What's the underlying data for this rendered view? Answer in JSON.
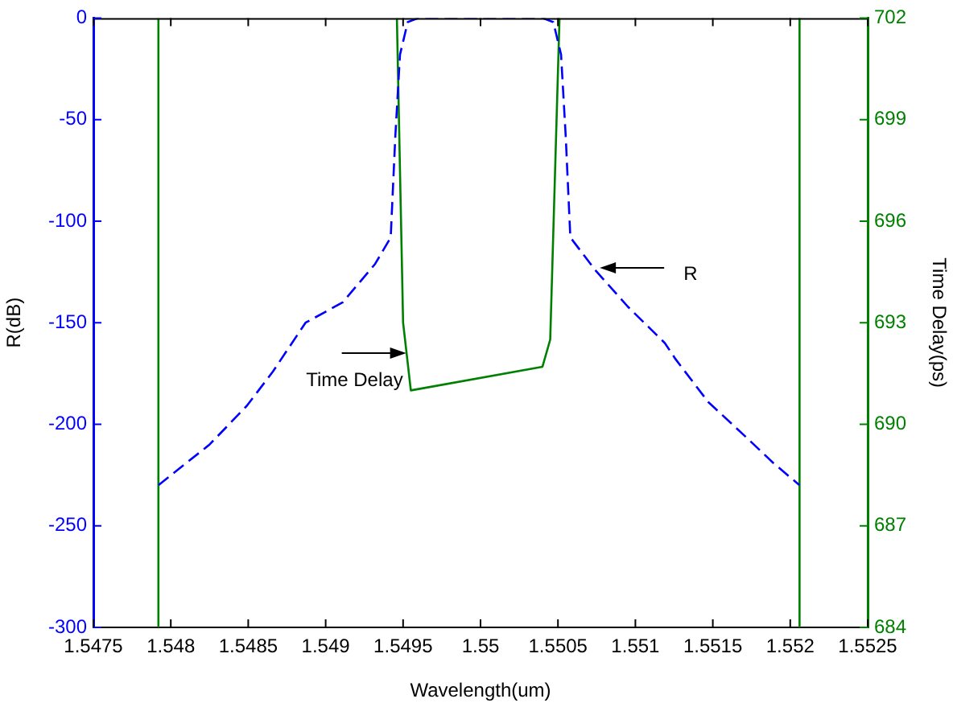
{
  "chart_data": {
    "type": "line",
    "xlabel": "Wavelength(um)",
    "ylabel": "R(dB)",
    "y2label": "Time Delay(ps)",
    "xlim": [
      1.5475,
      1.5525
    ],
    "xticks": [
      1.5475,
      1.548,
      1.5485,
      1.549,
      1.5495,
      1.55,
      1.5505,
      1.551,
      1.5515,
      1.552,
      1.5525
    ],
    "ylim": [
      -300,
      0
    ],
    "yticks": [
      -300,
      -250,
      -200,
      -150,
      -100,
      -50,
      0
    ],
    "y2lim": [
      684,
      702
    ],
    "y2ticks": [
      684,
      687,
      690,
      693,
      696,
      699,
      702
    ],
    "grid": false,
    "legend": false,
    "marker": "none",
    "series": [
      {
        "color": "#0000ff",
        "line_style": "dashed",
        "x": [
          1.54792,
          1.54825,
          1.54849,
          1.54866,
          1.54887,
          1.54911,
          1.54932,
          1.54942,
          1.54945,
          1.54948,
          1.54953,
          1.5496,
          1.5504,
          1.55047,
          1.55052,
          1.55055,
          1.55058,
          1.55074,
          1.55095,
          1.55119,
          1.55126,
          1.55147,
          1.55171,
          1.55189,
          1.55206
        ],
        "values": [
          -230,
          -210,
          -191,
          -174,
          -150,
          -140,
          -121,
          -108,
          -58,
          -18,
          -2,
          0,
          0,
          -2,
          -18,
          -58,
          -108,
          -124,
          -142,
          -160,
          -168,
          -189,
          -206,
          -219,
          -230
        ]
      },
      {
        "color": "#008000",
        "axis": "y2",
        "line_style": "solid",
        "x": [
          1.54792,
          1.54792,
          1.549,
          1.54946,
          1.5495,
          1.54955,
          1.5504,
          1.55045,
          1.55051,
          1.551,
          1.55206,
          1.55206
        ],
        "values": [
          684,
          702,
          null,
          702,
          693,
          691,
          691.7,
          692.5,
          702,
          null,
          702,
          684
        ]
      }
    ],
    "annotations": [
      {
        "text": "R",
        "x": 1.55077,
        "y": -123
      },
      {
        "text": "Time Delay",
        "x": 1.54952,
        "y": -165
      }
    ]
  }
}
